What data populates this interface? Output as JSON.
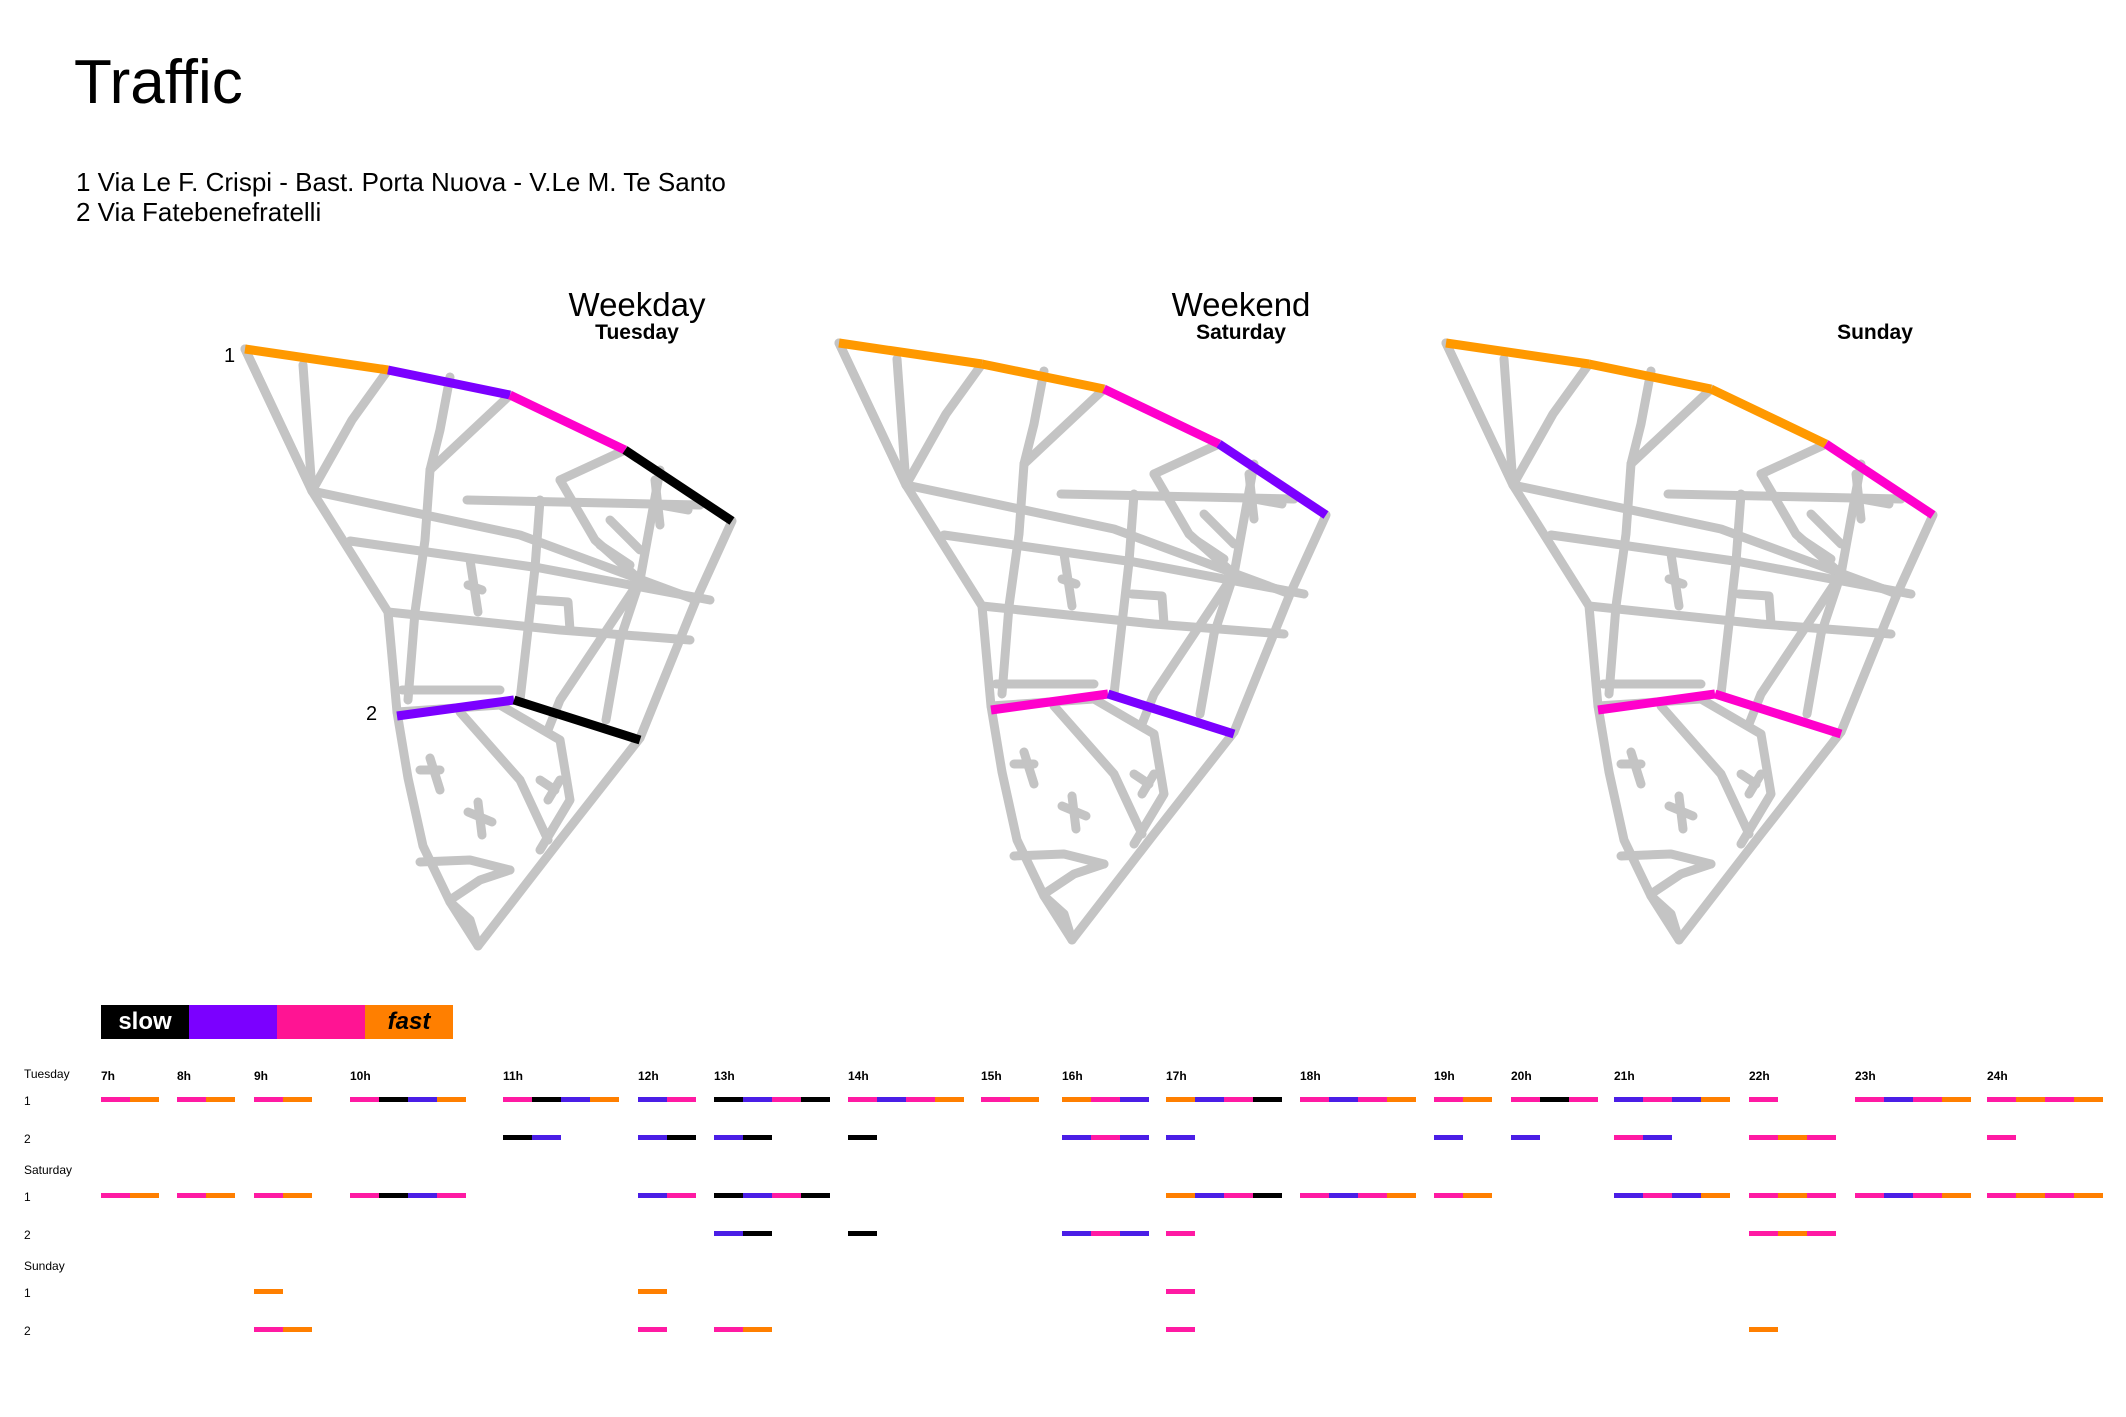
{
  "title": "Traffic",
  "streets": [
    "1 Via Le F. Crispi - Bast. Porta Nuova - V.Le M. Te Santo",
    "2 Via Fatebenefratelli"
  ],
  "colors": {
    "slow": "#000000",
    "medium_slow": "#7b00ff",
    "medium_fast": "#ff00cc",
    "fast": "#ff9900",
    "road": "#c4c4c4"
  },
  "maps": [
    {
      "heading": "Weekday",
      "day": "Tuesday",
      "street_labels": [
        "1",
        "2"
      ],
      "street1": [
        "fast",
        "medium_slow",
        "medium_fast",
        "slow"
      ],
      "street2": [
        "medium_slow",
        "slow"
      ]
    },
    {
      "heading": "Weekend",
      "day": "Saturday",
      "street_labels": [],
      "street1": [
        "fast",
        "fast",
        "medium_fast",
        "medium_slow"
      ],
      "street2": [
        "medium_fast",
        "medium_slow"
      ]
    },
    {
      "heading": "",
      "day": "Sunday",
      "street_labels": [],
      "street1": [
        "fast",
        "fast",
        "fast",
        "medium_fast"
      ],
      "street2": [
        "medium_fast",
        "medium_fast"
      ]
    }
  ],
  "scale": {
    "slow_label": "slow",
    "fast_label": "fast",
    "colors": [
      "#000000",
      "#7b00ff",
      "#ff1493",
      "#ff7f00"
    ]
  },
  "timeline": {
    "hours": [
      "7h",
      "8h",
      "9h",
      "10h",
      "11h",
      "12h",
      "13h",
      "14h",
      "15h",
      "16h",
      "17h",
      "18h",
      "19h",
      "20h",
      "21h",
      "22h",
      "23h",
      "24h"
    ],
    "segment_colors": {
      "K": "#000000",
      "B": "#4a1ee6",
      "P": "#ff1aa3",
      "O": "#ff7f00"
    },
    "rows": [
      {
        "day": "Tuesday",
        "label": "1",
        "cells": [
          "PO",
          "PO",
          "PO",
          "PKBO",
          "PKBO",
          "BP",
          "KBPK",
          "PBPO",
          "PO",
          "OPB",
          "OBPK",
          "PBPO",
          "PO",
          "PKP",
          "BPBO",
          "P",
          "PBPO",
          "POPO"
        ]
      },
      {
        "day": "",
        "label": "2",
        "cells": [
          "",
          "",
          "",
          "",
          "KB",
          "BK",
          "BK",
          "K",
          "",
          "BPB",
          "B",
          "",
          "B",
          "B",
          "PB",
          "POP",
          "",
          "P"
        ]
      },
      {
        "day": "Saturday",
        "label": "1",
        "cells": [
          "PO",
          "PO",
          "PO",
          "PKBP",
          "",
          "BP",
          "KBPK",
          "",
          "",
          "",
          "OBPK",
          "PBPO",
          "PO",
          "",
          "BPBO",
          "POP",
          "PBPO",
          "POPO"
        ]
      },
      {
        "day": "",
        "label": "2",
        "cells": [
          "",
          "",
          "",
          "",
          "",
          "",
          "BK",
          "K",
          "",
          "BPB",
          "P",
          "",
          "",
          "",
          "",
          "POP",
          "",
          ""
        ]
      },
      {
        "day": "Sunday",
        "label": "1",
        "cells": [
          "",
          "",
          "O",
          "",
          "",
          "O",
          "",
          "",
          "",
          "",
          "P",
          "",
          "",
          "",
          "",
          "",
          "",
          ""
        ]
      },
      {
        "day": "",
        "label": "2",
        "cells": [
          "",
          "",
          "PO",
          "",
          "",
          "P",
          "PO",
          "",
          "",
          "",
          "P",
          "",
          "",
          "",
          "",
          "O",
          "",
          ""
        ]
      }
    ]
  }
}
